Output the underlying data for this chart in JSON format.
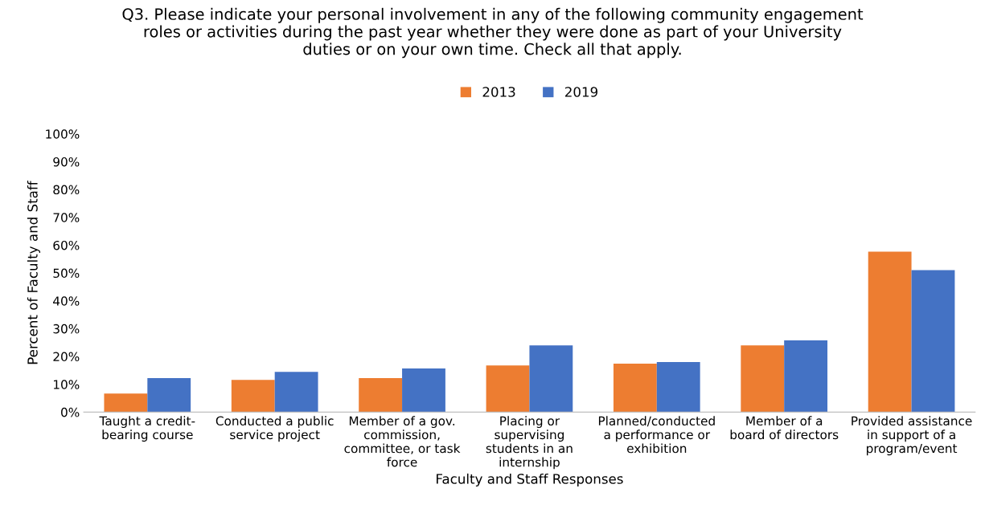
{
  "chart_data": {
    "type": "bar",
    "title": "Q3. Please indicate your personal involvement in any of the following community engagement\nroles or activities during the past year whether they were done as part of your University\nduties or on your own time. Check all that apply.",
    "xlabel": "Faculty and Staff Responses",
    "ylabel": "Percent of Faculty and Staff",
    "categories": [
      "Taught a credit-\nbearing course",
      "Conducted a public\nservice project",
      "Member of a gov.\ncommission,\ncommittee, or task\nforce",
      "Placing or\nsupervising\nstudents in an\ninternship",
      "Planned/conducted\na performance or\nexhibition",
      "Member of a\nboard of directors",
      "Provided assistance\nin support of a\nprogram/event"
    ],
    "series": [
      {
        "name": "2013",
        "color": "#ed7d31",
        "values": [
          6.7,
          11.6,
          12.2,
          16.8,
          17.4,
          24,
          57.7
        ]
      },
      {
        "name": "2019",
        "color": "#4472c4",
        "values": [
          12.2,
          14.5,
          15.7,
          24,
          18,
          25.8,
          51
        ]
      }
    ],
    "ylim": [
      0,
      100
    ],
    "yticks": [
      {
        "value": 0,
        "label": "0%"
      },
      {
        "value": 10,
        "label": "10%"
      },
      {
        "value": 20,
        "label": "20%"
      },
      {
        "value": 30,
        "label": "30%"
      },
      {
        "value": 40,
        "label": "40%"
      },
      {
        "value": 50,
        "label": "50%"
      },
      {
        "value": 60,
        "label": "60%"
      },
      {
        "value": 70,
        "label": "70%"
      },
      {
        "value": 80,
        "label": "80%"
      },
      {
        "value": 90,
        "label": "90%"
      },
      {
        "value": 100,
        "label": "100%"
      }
    ],
    "grid": false,
    "legend": "top"
  }
}
